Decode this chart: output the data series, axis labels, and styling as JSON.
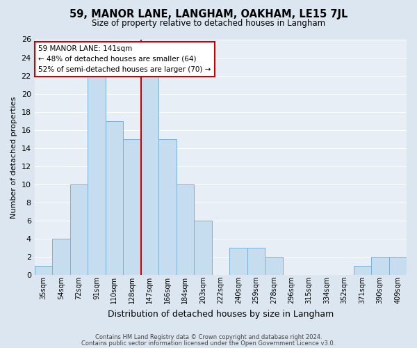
{
  "title": "59, MANOR LANE, LANGHAM, OAKHAM, LE15 7JL",
  "subtitle": "Size of property relative to detached houses in Langham",
  "xlabel": "Distribution of detached houses by size in Langham",
  "ylabel": "Number of detached properties",
  "bar_labels": [
    "35sqm",
    "54sqm",
    "72sqm",
    "91sqm",
    "110sqm",
    "128sqm",
    "147sqm",
    "166sqm",
    "184sqm",
    "203sqm",
    "222sqm",
    "240sqm",
    "259sqm",
    "278sqm",
    "296sqm",
    "315sqm",
    "334sqm",
    "352sqm",
    "371sqm",
    "390sqm",
    "409sqm"
  ],
  "bar_values": [
    1,
    4,
    10,
    22,
    17,
    15,
    22,
    15,
    10,
    6,
    0,
    3,
    3,
    2,
    0,
    0,
    0,
    0,
    1,
    2,
    2
  ],
  "bar_color": "#c5ddef",
  "bar_edge_color": "#7ab0d4",
  "vline_color": "#cc0000",
  "annotation_title": "59 MANOR LANE: 141sqm",
  "annotation_line1": "← 48% of detached houses are smaller (64)",
  "annotation_line2": "52% of semi-detached houses are larger (70) →",
  "box_facecolor": "#ffffff",
  "box_edgecolor": "#cc0000",
  "bg_color": "#e8eef5",
  "fig_bg_color": "#dce6f0",
  "ylim": [
    0,
    26
  ],
  "yticks": [
    0,
    2,
    4,
    6,
    8,
    10,
    12,
    14,
    16,
    18,
    20,
    22,
    24,
    26
  ],
  "footer1": "Contains HM Land Registry data © Crown copyright and database right 2024.",
  "footer2": "Contains public sector information licensed under the Open Government Licence v3.0."
}
